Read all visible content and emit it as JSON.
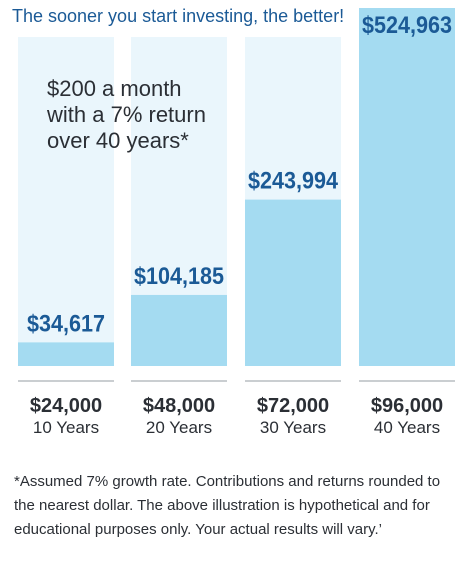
{
  "title": "The sooner you start investing, the better!",
  "callout": {
    "lines": [
      "$200 a month",
      "with a 7% return",
      "over 40 years*"
    ]
  },
  "footnote": "*Assumed 7% growth rate. Contributions and returns rounded to the nearest dollar. The above illustration is hypothetical and for educational purposes only. Your actual results will vary.’",
  "colors": {
    "bar": "#a4dbf1",
    "bar_bg": "#eaf6fc",
    "value_text": "#1b5a96",
    "text": "#2b2f35",
    "divider": "#b9bdc2"
  },
  "chart_data": {
    "type": "bar",
    "categories": [
      "10 Years",
      "20 Years",
      "30 Years",
      "40 Years"
    ],
    "values": [
      34617,
      104185,
      243994,
      524963
    ],
    "value_labels": [
      "$34,617",
      "$104,185",
      "$243,994",
      "$524,963"
    ],
    "contributions": [
      "$24,000",
      "$48,000",
      "$72,000",
      "$96,000"
    ],
    "title": "The sooner you start investing, the better!",
    "xlabel": "",
    "ylabel": "",
    "ylim": [
      0,
      524963
    ],
    "grid": false,
    "legend": "none"
  }
}
